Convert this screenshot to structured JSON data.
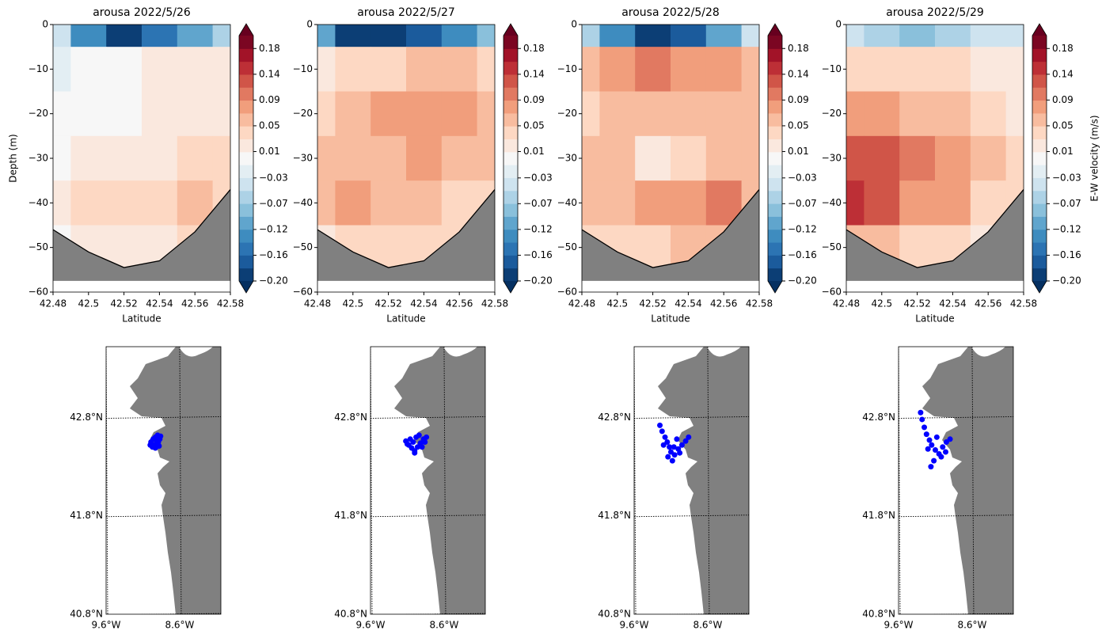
{
  "chart_data": [
    {
      "type": "contour",
      "title": "arousa 2022/5/26",
      "xlabel": "Latitude",
      "ylabel": "Depth (m)",
      "x": [
        42.48,
        42.5,
        42.52,
        42.54,
        42.56,
        42.58
      ],
      "depths": [
        0,
        -10,
        -20,
        -30,
        -40,
        -50
      ],
      "values": [
        [
          -0.05,
          -0.12,
          -0.18,
          -0.15,
          -0.1,
          -0.06
        ],
        [
          -0.02,
          0.0,
          0.01,
          0.02,
          0.03,
          0.03
        ],
        [
          0.0,
          0.0,
          0.0,
          0.02,
          0.03,
          0.03
        ],
        [
          0.01,
          0.02,
          0.03,
          0.03,
          0.04,
          0.05
        ],
        [
          0.03,
          0.04,
          0.04,
          0.05,
          0.07,
          0.05
        ],
        [
          0.01,
          0.02,
          0.03,
          0.03,
          0.04,
          0.04
        ]
      ],
      "bottom": [
        -46,
        -51,
        -54.5,
        -53,
        -46.5,
        -37
      ],
      "xlim": [
        42.48,
        42.58
      ],
      "xticks": [
        42.48,
        42.5,
        42.52,
        42.54,
        42.56,
        42.58
      ],
      "ylim": [
        -60,
        0
      ],
      "yticks": [
        0,
        {
          "value": -10,
          "label": "−10"
        },
        {
          "value": -20,
          "label": "−20"
        },
        {
          "value": -30,
          "label": "−30"
        },
        {
          "value": -40,
          "label": "−40"
        },
        {
          "value": -50,
          "label": "−50"
        },
        {
          "value": -60,
          "label": "−60"
        }
      ],
      "clim": [
        -0.2,
        0.2
      ],
      "cticks": [
        {
          "value": -0.2,
          "label": "−0.20"
        },
        {
          "value": -0.158,
          "label": "−0.16"
        },
        {
          "value": -0.116,
          "label": "−0.12"
        },
        {
          "value": -0.074,
          "label": "−0.07"
        },
        {
          "value": -0.032,
          "label": "−0.03"
        },
        {
          "value": 0.011,
          "label": "0.01"
        },
        {
          "value": 0.053,
          "label": "0.05"
        },
        {
          "value": 0.095,
          "label": "0.09"
        },
        {
          "value": 0.137,
          "label": "0.14"
        },
        {
          "value": 0.179,
          "label": "0.18"
        }
      ]
    },
    {
      "type": "contour",
      "title": "arousa 2022/5/27",
      "xlabel": "Latitude",
      "x": [
        42.48,
        42.5,
        42.52,
        42.54,
        42.56,
        42.58
      ],
      "depths": [
        0,
        -10,
        -20,
        -30,
        -40,
        -50
      ],
      "values": [
        [
          -0.1,
          -0.18,
          -0.2,
          -0.16,
          -0.12,
          -0.08
        ],
        [
          0.02,
          0.05,
          0.05,
          0.06,
          0.06,
          0.05
        ],
        [
          0.04,
          0.06,
          0.08,
          0.08,
          0.08,
          0.06
        ],
        [
          0.06,
          0.06,
          0.07,
          0.08,
          0.07,
          0.06
        ],
        [
          0.07,
          0.08,
          0.06,
          0.06,
          0.05,
          0.05
        ],
        [
          0.03,
          0.04,
          0.04,
          0.04,
          0.04,
          0.03
        ]
      ],
      "bottom": [
        -46,
        -51,
        -54.5,
        -53,
        -46.5,
        -37
      ],
      "xlim": [
        42.48,
        42.58
      ],
      "xticks": [
        42.48,
        42.5,
        42.52,
        42.54,
        42.56,
        42.58
      ],
      "ylim": [
        -60,
        0
      ],
      "yticks": [
        0,
        {
          "value": -10,
          "label": "−10"
        },
        {
          "value": -20,
          "label": "−20"
        },
        {
          "value": -30,
          "label": "−30"
        },
        {
          "value": -40,
          "label": "−40"
        },
        {
          "value": -50,
          "label": "−50"
        },
        {
          "value": -60,
          "label": "−60"
        }
      ],
      "clim": [
        -0.2,
        0.2
      ],
      "cticks": [
        {
          "value": -0.2,
          "label": "−0.20"
        },
        {
          "value": -0.158,
          "label": "−0.16"
        },
        {
          "value": -0.116,
          "label": "−0.12"
        },
        {
          "value": -0.074,
          "label": "−0.07"
        },
        {
          "value": -0.032,
          "label": "−0.03"
        },
        {
          "value": 0.011,
          "label": "0.01"
        },
        {
          "value": 0.053,
          "label": "0.05"
        },
        {
          "value": 0.095,
          "label": "0.09"
        },
        {
          "value": 0.137,
          "label": "0.14"
        },
        {
          "value": 0.179,
          "label": "0.18"
        }
      ]
    },
    {
      "type": "contour",
      "title": "arousa 2022/5/28",
      "xlabel": "Latitude",
      "x": [
        42.48,
        42.5,
        42.52,
        42.54,
        42.56,
        42.58
      ],
      "depths": [
        0,
        -10,
        -20,
        -30,
        -40,
        -50
      ],
      "values": [
        [
          -0.06,
          -0.12,
          -0.18,
          -0.16,
          -0.1,
          -0.05
        ],
        [
          0.06,
          0.09,
          0.1,
          0.09,
          0.08,
          0.06
        ],
        [
          0.05,
          0.07,
          0.07,
          0.07,
          0.07,
          0.06
        ],
        [
          0.06,
          0.06,
          0.03,
          0.05,
          0.06,
          0.06
        ],
        [
          0.07,
          0.07,
          0.08,
          0.09,
          0.1,
          0.07
        ],
        [
          0.04,
          0.05,
          0.05,
          0.06,
          0.06,
          0.04
        ]
      ],
      "bottom": [
        -46,
        -51,
        -54.5,
        -53,
        -46.5,
        -37
      ],
      "xlim": [
        42.48,
        42.58
      ],
      "xticks": [
        42.48,
        42.5,
        42.52,
        42.54,
        42.56,
        42.58
      ],
      "ylim": [
        -60,
        0
      ],
      "yticks": [
        0,
        {
          "value": -10,
          "label": "−10"
        },
        {
          "value": -20,
          "label": "−20"
        },
        {
          "value": -30,
          "label": "−30"
        },
        {
          "value": -40,
          "label": "−40"
        },
        {
          "value": -50,
          "label": "−50"
        },
        {
          "value": -60,
          "label": "−60"
        }
      ],
      "clim": [
        -0.2,
        0.2
      ],
      "cticks": [
        {
          "value": -0.2,
          "label": "−0.20"
        },
        {
          "value": -0.158,
          "label": "−0.16"
        },
        {
          "value": -0.116,
          "label": "−0.12"
        },
        {
          "value": -0.074,
          "label": "−0.07"
        },
        {
          "value": -0.032,
          "label": "−0.03"
        },
        {
          "value": 0.011,
          "label": "0.01"
        },
        {
          "value": 0.053,
          "label": "0.05"
        },
        {
          "value": 0.095,
          "label": "0.09"
        },
        {
          "value": 0.137,
          "label": "0.14"
        },
        {
          "value": 0.179,
          "label": "0.18"
        }
      ]
    },
    {
      "type": "contour",
      "title": "arousa 2022/5/29",
      "xlabel": "Latitude",
      "colorbar_label": "E-W velocity (m/s)",
      "x": [
        42.48,
        42.5,
        42.52,
        42.54,
        42.56,
        42.58
      ],
      "depths": [
        0,
        -10,
        -20,
        -30,
        -40,
        -50
      ],
      "values": [
        [
          -0.05,
          -0.06,
          -0.08,
          -0.06,
          -0.05,
          -0.04
        ],
        [
          0.04,
          0.04,
          0.05,
          0.04,
          0.03,
          0.02
        ],
        [
          0.09,
          0.08,
          0.07,
          0.06,
          0.05,
          0.03
        ],
        [
          0.12,
          0.12,
          0.1,
          0.08,
          0.06,
          0.04
        ],
        [
          0.14,
          0.12,
          0.09,
          0.08,
          0.05,
          0.04
        ],
        [
          0.06,
          0.06,
          0.05,
          0.04,
          0.03,
          0.03
        ]
      ],
      "bottom": [
        -46,
        -51,
        -54.5,
        -53,
        -46.5,
        -37
      ],
      "xlim": [
        42.48,
        42.58
      ],
      "xticks": [
        42.48,
        42.5,
        42.52,
        42.54,
        42.56,
        42.58
      ],
      "ylim": [
        -60,
        0
      ],
      "yticks": [
        0,
        {
          "value": -10,
          "label": "−10"
        },
        {
          "value": -20,
          "label": "−20"
        },
        {
          "value": -30,
          "label": "−30"
        },
        {
          "value": -40,
          "label": "−40"
        },
        {
          "value": -50,
          "label": "−50"
        },
        {
          "value": -60,
          "label": "−60"
        }
      ],
      "clim": [
        -0.2,
        0.2
      ],
      "cticks": [
        {
          "value": -0.2,
          "label": "−0.20"
        },
        {
          "value": -0.158,
          "label": "−0.16"
        },
        {
          "value": -0.116,
          "label": "−0.12"
        },
        {
          "value": -0.074,
          "label": "−0.07"
        },
        {
          "value": -0.032,
          "label": "−0.03"
        },
        {
          "value": 0.011,
          "label": "0.01"
        },
        {
          "value": 0.053,
          "label": "0.05"
        },
        {
          "value": 0.095,
          "label": "0.09"
        },
        {
          "value": 0.137,
          "label": "0.14"
        },
        {
          "value": 0.179,
          "label": "0.18"
        }
      ]
    },
    {
      "type": "map",
      "color": "#0000ff",
      "land_color": "#808080",
      "x": [
        -8.99,
        -8.96,
        -8.93,
        -8.9,
        -8.87,
        -8.95,
        -8.91,
        -8.88,
        -8.93,
        -8.97,
        -8.89,
        -8.92,
        -9.0,
        -8.86
      ],
      "y": [
        42.55,
        42.58,
        42.6,
        42.62,
        42.58,
        42.52,
        42.54,
        42.51,
        42.49,
        42.5,
        42.55,
        42.57,
        42.52,
        42.61
      ],
      "xlim": [
        -9.6,
        -8.04
      ],
      "ylim": [
        40.8,
        43.52
      ],
      "xticks": [
        {
          "value": -9.6,
          "label": "9.6°W"
        },
        {
          "value": -8.6,
          "label": "8.6°W"
        }
      ],
      "yticks": [
        {
          "value": 40.8,
          "label": "40.8°N"
        },
        {
          "value": 41.8,
          "label": "41.8°N"
        },
        {
          "value": 42.8,
          "label": "42.8°N"
        }
      ]
    },
    {
      "type": "map",
      "color": "#0000ff",
      "land_color": "#808080",
      "x": [
        -9.12,
        -9.08,
        -9.04,
        -9.0,
        -8.96,
        -8.92,
        -8.88,
        -8.84,
        -9.06,
        -9.02,
        -8.98,
        -8.94,
        -8.9,
        -9.1,
        -8.86,
        -9.0
      ],
      "y": [
        42.56,
        42.52,
        42.49,
        42.46,
        42.5,
        42.54,
        42.58,
        42.6,
        42.58,
        42.55,
        42.6,
        42.62,
        42.5,
        42.53,
        42.55,
        42.44
      ],
      "xlim": [
        -9.6,
        -8.04
      ],
      "ylim": [
        40.8,
        43.52
      ],
      "xticks": [
        {
          "value": -9.6,
          "label": "9.6°W"
        },
        {
          "value": -8.6,
          "label": "8.6°W"
        }
      ],
      "yticks": [
        {
          "value": 40.8,
          "label": "40.8°N"
        },
        {
          "value": 41.8,
          "label": "41.8°N"
        },
        {
          "value": 42.8,
          "label": "42.8°N"
        }
      ]
    },
    {
      "type": "map",
      "color": "#0000ff",
      "land_color": "#808080",
      "x": [
        -9.25,
        -9.22,
        -9.18,
        -9.15,
        -9.12,
        -9.1,
        -9.05,
        -9.0,
        -8.95,
        -8.9,
        -8.86,
        -9.08,
        -9.02,
        -9.14,
        -9.2,
        -8.98,
        -9.06
      ],
      "y": [
        42.72,
        42.66,
        42.6,
        42.55,
        42.5,
        42.45,
        42.42,
        42.48,
        42.52,
        42.56,
        42.6,
        42.36,
        42.58,
        42.4,
        42.52,
        42.44,
        42.5
      ],
      "xlim": [
        -9.6,
        -8.04
      ],
      "ylim": [
        40.8,
        43.52
      ],
      "xticks": [
        {
          "value": -9.6,
          "label": "9.6°W"
        },
        {
          "value": -8.6,
          "label": "8.6°W"
        }
      ],
      "yticks": [
        {
          "value": 40.8,
          "label": "40.8°N"
        },
        {
          "value": 41.8,
          "label": "41.8°N"
        },
        {
          "value": 42.8,
          "label": "42.8°N"
        }
      ]
    },
    {
      "type": "map",
      "color": "#0000ff",
      "land_color": "#808080",
      "x": [
        -9.3,
        -9.28,
        -9.25,
        -9.22,
        -9.18,
        -9.15,
        -9.1,
        -9.05,
        -9.0,
        -8.95,
        -8.9,
        -9.12,
        -9.2,
        -9.08,
        -9.02,
        -9.16,
        -8.96
      ],
      "y": [
        42.85,
        42.78,
        42.7,
        42.63,
        42.57,
        42.52,
        42.47,
        42.43,
        42.5,
        42.55,
        42.58,
        42.36,
        42.48,
        42.6,
        42.4,
        42.3,
        42.45
      ],
      "xlim": [
        -9.6,
        -8.04
      ],
      "ylim": [
        40.8,
        43.52
      ],
      "xticks": [
        {
          "value": -9.6,
          "label": "9.6°W"
        },
        {
          "value": -8.6,
          "label": "8.6°W"
        }
      ],
      "yticks": [
        {
          "value": 40.8,
          "label": "40.8°N"
        },
        {
          "value": 41.8,
          "label": "41.8°N"
        },
        {
          "value": 42.8,
          "label": "42.8°N"
        }
      ]
    }
  ]
}
